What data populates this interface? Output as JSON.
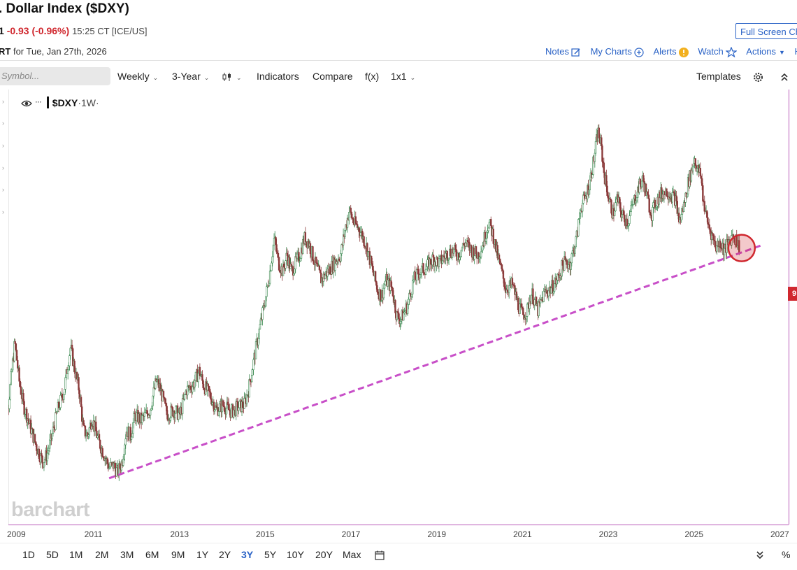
{
  "header": {
    "title": ". Dollar Index ($DXY)",
    "last_price": "1",
    "change": "-0.93 (-0.96%)",
    "time": "15:25 CT [ICE/US]",
    "full_screen_label": "Full Screen Ch",
    "chart_for_prefix": "RT",
    "chart_for_text": "for Tue, Jan 27th, 2026",
    "links": {
      "notes": "Notes",
      "my_charts": "My Charts",
      "alerts": "Alerts",
      "watch": "Watch",
      "actions": "Actions",
      "help": "He"
    }
  },
  "toolbar": {
    "symbol_placeholder": "Symbol...",
    "period": "Weekly",
    "range": "3-Year",
    "indicators": "Indicators",
    "compare": "Compare",
    "fx": "f(x)",
    "layout": "1x1",
    "templates": "Templates"
  },
  "legend": {
    "symbol": "$DXY",
    "interval": "·1W·"
  },
  "price_label": "9",
  "watermark": "barchart",
  "ranges": [
    "1D",
    "5D",
    "1M",
    "2M",
    "3M",
    "6M",
    "9M",
    "1Y",
    "2Y",
    "3Y",
    "5Y",
    "10Y",
    "20Y",
    "Max"
  ],
  "active_range": "3Y",
  "percent_label": "%",
  "colors": {
    "accent": "#2b63c6",
    "down": "#d0282f",
    "trendline": "#c84fc8",
    "candle_up": "#3d8a52",
    "candle_down": "#8a3a3a",
    "circle": "#d0282f"
  },
  "chart_data": {
    "type": "candlestick",
    "symbol": "$DXY",
    "interval": "1W",
    "x_ticks": [
      "2009",
      "2011",
      "2013",
      "2015",
      "2017",
      "2019",
      "2021",
      "2023",
      "2025",
      "2027"
    ],
    "xlim": [
      2009.0,
      2027.0
    ],
    "ylim": [
      70,
      116
    ],
    "y_scale": "log",
    "series_close": [
      [
        2008.85,
        86
      ],
      [
        2008.9,
        83
      ],
      [
        2009.0,
        80.5
      ],
      [
        2009.15,
        87
      ],
      [
        2009.25,
        83
      ],
      [
        2009.35,
        80.5
      ],
      [
        2009.5,
        78.5
      ],
      [
        2009.65,
        76.5
      ],
      [
        2009.8,
        75
      ],
      [
        2009.9,
        75.7
      ],
      [
        2010.0,
        77.2
      ],
      [
        2010.15,
        80
      ],
      [
        2010.3,
        82
      ],
      [
        2010.45,
        86.5
      ],
      [
        2010.55,
        84
      ],
      [
        2010.65,
        82
      ],
      [
        2010.75,
        78
      ],
      [
        2010.85,
        77.5
      ],
      [
        2010.95,
        79.2
      ],
      [
        2011.1,
        77
      ],
      [
        2011.25,
        75.5
      ],
      [
        2011.35,
        74.5
      ],
      [
        2011.45,
        74.7
      ],
      [
        2011.55,
        74
      ],
      [
        2011.65,
        75
      ],
      [
        2011.75,
        78
      ],
      [
        2011.85,
        77.5
      ],
      [
        2011.95,
        79.5
      ],
      [
        2012.1,
        79
      ],
      [
        2012.3,
        80
      ],
      [
        2012.45,
        83
      ],
      [
        2012.55,
        82
      ],
      [
        2012.7,
        79.5
      ],
      [
        2012.85,
        80
      ],
      [
        2013.0,
        79.5
      ],
      [
        2013.15,
        82
      ],
      [
        2013.3,
        82.5
      ],
      [
        2013.45,
        84
      ],
      [
        2013.55,
        82.5
      ],
      [
        2013.7,
        81.5
      ],
      [
        2013.85,
        80
      ],
      [
        2014.0,
        80.5
      ],
      [
        2014.2,
        79.8
      ],
      [
        2014.35,
        80.3
      ],
      [
        2014.5,
        80.5
      ],
      [
        2014.6,
        82
      ],
      [
        2014.7,
        84.5
      ],
      [
        2014.8,
        87
      ],
      [
        2014.9,
        89.5
      ],
      [
        2015.0,
        92
      ],
      [
        2015.1,
        95
      ],
      [
        2015.2,
        99
      ],
      [
        2015.3,
        96
      ],
      [
        2015.4,
        95
      ],
      [
        2015.5,
        97
      ],
      [
        2015.6,
        95
      ],
      [
        2015.7,
        96
      ],
      [
        2015.8,
        97
      ],
      [
        2015.9,
        99
      ],
      [
        2016.0,
        98.5
      ],
      [
        2016.15,
        96
      ],
      [
        2016.3,
        94
      ],
      [
        2016.45,
        95
      ],
      [
        2016.6,
        96
      ],
      [
        2016.75,
        97
      ],
      [
        2016.85,
        100
      ],
      [
        2016.95,
        102.5
      ],
      [
        2017.05,
        101
      ],
      [
        2017.2,
        100
      ],
      [
        2017.35,
        98
      ],
      [
        2017.5,
        95
      ],
      [
        2017.6,
        93
      ],
      [
        2017.7,
        92
      ],
      [
        2017.8,
        94
      ],
      [
        2017.95,
        93
      ],
      [
        2018.05,
        90
      ],
      [
        2018.15,
        89.5
      ],
      [
        2018.3,
        91
      ],
      [
        2018.45,
        94
      ],
      [
        2018.6,
        95
      ],
      [
        2018.75,
        95.5
      ],
      [
        2018.9,
        96.5
      ],
      [
        2019.05,
        96
      ],
      [
        2019.2,
        97
      ],
      [
        2019.35,
        97.5
      ],
      [
        2019.5,
        97
      ],
      [
        2019.65,
        98.5
      ],
      [
        2019.8,
        97.5
      ],
      [
        2019.95,
        97
      ],
      [
        2020.05,
        98
      ],
      [
        2020.2,
        101
      ],
      [
        2020.3,
        99.5
      ],
      [
        2020.4,
        97
      ],
      [
        2020.5,
        95
      ],
      [
        2020.6,
        93
      ],
      [
        2020.75,
        93.5
      ],
      [
        2020.9,
        91
      ],
      [
        2021.0,
        90
      ],
      [
        2021.1,
        90.5
      ],
      [
        2021.2,
        92.5
      ],
      [
        2021.35,
        90.5
      ],
      [
        2021.5,
        92.5
      ],
      [
        2021.65,
        93
      ],
      [
        2021.8,
        94
      ],
      [
        2021.95,
        96
      ],
      [
        2022.1,
        96
      ],
      [
        2022.25,
        99
      ],
      [
        2022.35,
        103
      ],
      [
        2022.45,
        104
      ],
      [
        2022.55,
        106
      ],
      [
        2022.65,
        109
      ],
      [
        2022.75,
        113
      ],
      [
        2022.82,
        111
      ],
      [
        2022.9,
        107
      ],
      [
        2023.0,
        104
      ],
      [
        2023.1,
        102
      ],
      [
        2023.2,
        104
      ],
      [
        2023.3,
        102
      ],
      [
        2023.45,
        101
      ],
      [
        2023.55,
        103
      ],
      [
        2023.7,
        105.5
      ],
      [
        2023.8,
        106.5
      ],
      [
        2023.9,
        104
      ],
      [
        2024.0,
        102
      ],
      [
        2024.1,
        103.5
      ],
      [
        2024.2,
        104.5
      ],
      [
        2024.35,
        105
      ],
      [
        2024.45,
        104.5
      ],
      [
        2024.55,
        104
      ],
      [
        2024.65,
        101
      ],
      [
        2024.75,
        103
      ],
      [
        2024.85,
        106
      ],
      [
        2024.95,
        108
      ],
      [
        2025.0,
        109.5
      ],
      [
        2025.05,
        108
      ],
      [
        2025.15,
        107
      ],
      [
        2025.2,
        104
      ],
      [
        2025.3,
        101
      ],
      [
        2025.4,
        99.5
      ],
      [
        2025.5,
        98
      ],
      [
        2025.6,
        98.5
      ],
      [
        2025.7,
        97.5
      ],
      [
        2025.8,
        98.5
      ],
      [
        2025.9,
        99.5
      ],
      [
        2026.0,
        98.5
      ],
      [
        2026.05,
        97.8
      ]
    ],
    "trendline": {
      "start": [
        2011.35,
        73.5
      ],
      "end": [
        2026.6,
        98.2
      ],
      "style": "dashed"
    },
    "highlight_circle_at": [
      2026.1,
      97.8
    ]
  }
}
